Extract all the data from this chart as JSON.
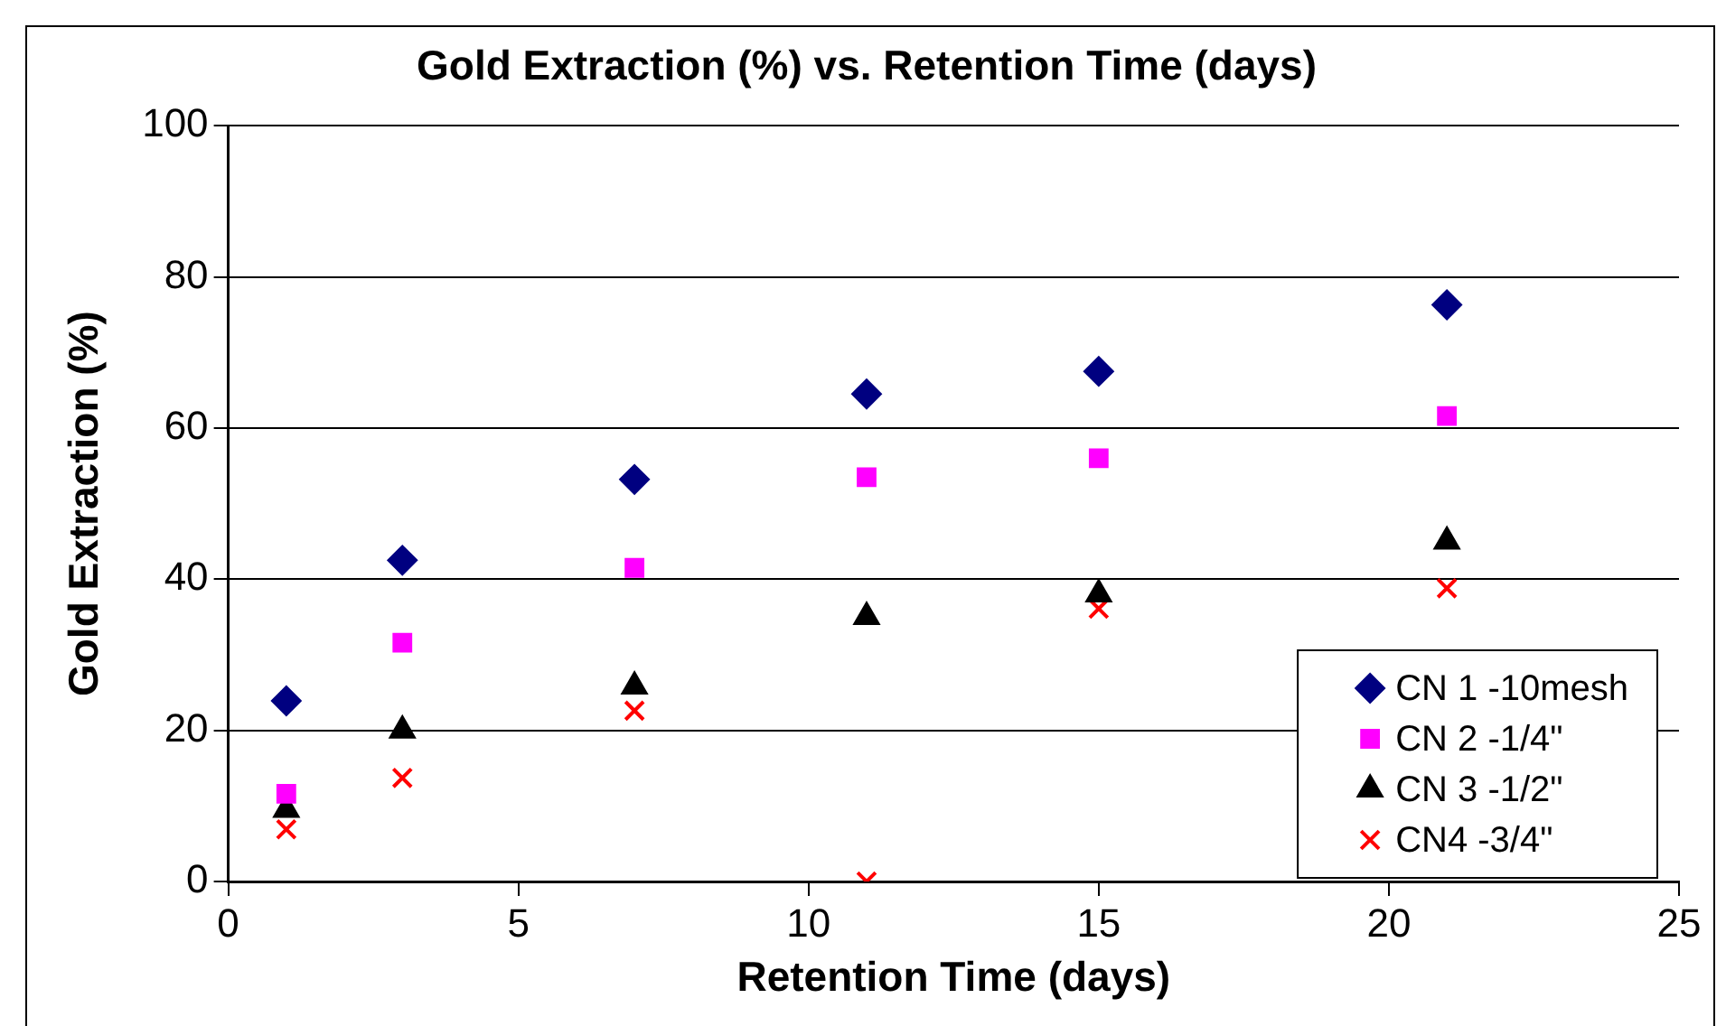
{
  "chart_data": {
    "type": "scatter",
    "title": "Gold Extraction (%) vs. Retention Time (days)",
    "xlabel": "Retention Time (days)",
    "ylabel": "Gold Extraction (%)",
    "x": [
      1,
      3,
      7,
      11,
      15,
      21
    ],
    "series": [
      {
        "name": "CN 1 -10mesh",
        "color": "#000080",
        "marker": "diamond",
        "values": [
          23.9,
          42.5,
          53.2,
          64.5,
          67.5,
          76.3
        ]
      },
      {
        "name": "CN 2 -1/4\"",
        "color": "#ff00ff",
        "marker": "square",
        "values": [
          11.6,
          31.6,
          41.5,
          53.5,
          56,
          61.6
        ]
      },
      {
        "name": "CN 3 -1/2\"",
        "color": "#000000",
        "marker": "triangle",
        "values": [
          9.5,
          20,
          25.8,
          35,
          38,
          45
        ]
      },
      {
        "name": "CN4 -3/4\"",
        "color": "#ff0000",
        "marker": "cross",
        "values": [
          6.9,
          13.7,
          22.6,
          0,
          36.1,
          38.8
        ]
      }
    ],
    "xlim": [
      0,
      25
    ],
    "xticks": [
      0,
      5,
      10,
      15,
      20,
      25
    ],
    "ylim": [
      0,
      100
    ],
    "yticks": [
      0,
      20,
      40,
      60,
      80,
      100
    ],
    "grid": "y",
    "legend": "bottom right"
  }
}
